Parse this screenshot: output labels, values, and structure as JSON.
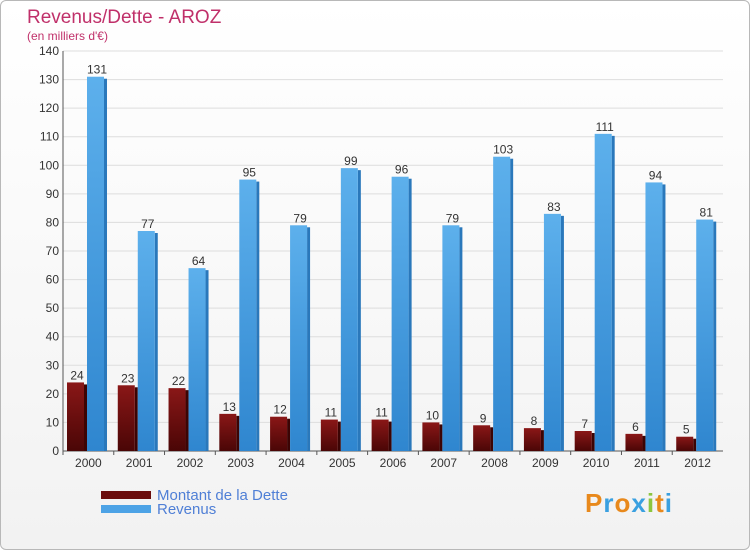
{
  "title": "Revenus/Dette - AROZ",
  "subtitle": "(en milliers d'€)",
  "brand": {
    "letters": [
      "P",
      "r",
      "o",
      "x",
      "i",
      "t",
      "i"
    ],
    "colors": [
      "#e8891c",
      "#3aa0e0",
      "#e8891c",
      "#3aa0e0",
      "#8cc63f",
      "#e8891c",
      "#3aa0e0"
    ]
  },
  "legend": [
    {
      "label": "Montant de la Dette",
      "color": "#6b0d0d"
    },
    {
      "label": "Revenus",
      "color": "#4da3e6"
    }
  ],
  "chart_data": {
    "type": "bar",
    "title": "Revenus/Dette - AROZ",
    "ylabel": "(en milliers d'€)",
    "xlabel": "",
    "ylim": [
      0,
      140
    ],
    "yticks": [
      0,
      10,
      20,
      30,
      40,
      50,
      60,
      70,
      80,
      90,
      100,
      110,
      120,
      130,
      140
    ],
    "categories": [
      "2000",
      "2001",
      "2002",
      "2003",
      "2004",
      "2005",
      "2006",
      "2007",
      "2008",
      "2009",
      "2010",
      "2011",
      "2012"
    ],
    "series": [
      {
        "name": "Montant de la Dette",
        "color": "#6b0d0d",
        "values": [
          24,
          23,
          22,
          13,
          12,
          11,
          11,
          10,
          9,
          8,
          7,
          6,
          5
        ]
      },
      {
        "name": "Revenus",
        "color": "#4da3e6",
        "values": [
          131,
          77,
          64,
          95,
          79,
          99,
          96,
          79,
          103,
          83,
          111,
          94,
          81
        ]
      }
    ],
    "legend_position": "bottom-left",
    "grid": true
  }
}
